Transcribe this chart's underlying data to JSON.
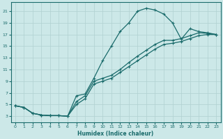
{
  "xlabel": "Humidex (Indice chaleur)",
  "bg_color": "#cce8e8",
  "grid_color": "#b0d0d0",
  "line_color": "#1a6b6b",
  "xlim": [
    -0.5,
    23.5
  ],
  "ylim": [
    2.0,
    22.5
  ],
  "xticks": [
    0,
    1,
    2,
    3,
    4,
    5,
    6,
    7,
    8,
    9,
    10,
    11,
    12,
    13,
    14,
    15,
    16,
    17,
    18,
    19,
    20,
    21,
    22,
    23
  ],
  "yticks": [
    3,
    5,
    7,
    9,
    11,
    13,
    15,
    17,
    19,
    21
  ],
  "line1_x": [
    0,
    1,
    2,
    3,
    4,
    5,
    6,
    7,
    8,
    9,
    10,
    11,
    12,
    13,
    14,
    15,
    16,
    17,
    18,
    19,
    20,
    21,
    22,
    23
  ],
  "line1_y": [
    4.8,
    4.5,
    3.5,
    3.2,
    3.1,
    3.1,
    3.0,
    6.5,
    6.8,
    9.5,
    12.5,
    15.0,
    17.5,
    19.0,
    21.0,
    21.5,
    21.2,
    20.5,
    19.0,
    16.2,
    18.0,
    17.5,
    17.3,
    17.0
  ],
  "line2_x": [
    0,
    1,
    2,
    3,
    4,
    5,
    6,
    7,
    8,
    9,
    10,
    11,
    12,
    13,
    14,
    15,
    16,
    17,
    18,
    19,
    20,
    21,
    22,
    23
  ],
  "line2_y": [
    4.8,
    4.5,
    3.5,
    3.2,
    3.1,
    3.1,
    3.0,
    5.5,
    6.5,
    9.0,
    9.5,
    10.0,
    11.0,
    12.2,
    13.3,
    14.3,
    15.3,
    16.0,
    16.0,
    16.3,
    16.8,
    17.3,
    17.2,
    17.0
  ],
  "line3_x": [
    0,
    1,
    2,
    3,
    4,
    5,
    6,
    7,
    8,
    9,
    10,
    11,
    12,
    13,
    14,
    15,
    16,
    17,
    18,
    19,
    20,
    21,
    22,
    23
  ],
  "line3_y": [
    4.8,
    4.5,
    3.5,
    3.2,
    3.1,
    3.1,
    3.0,
    5.0,
    6.0,
    8.5,
    9.0,
    9.5,
    10.5,
    11.5,
    12.5,
    13.5,
    14.5,
    15.3,
    15.5,
    15.8,
    16.3,
    16.8,
    17.0,
    17.0
  ]
}
